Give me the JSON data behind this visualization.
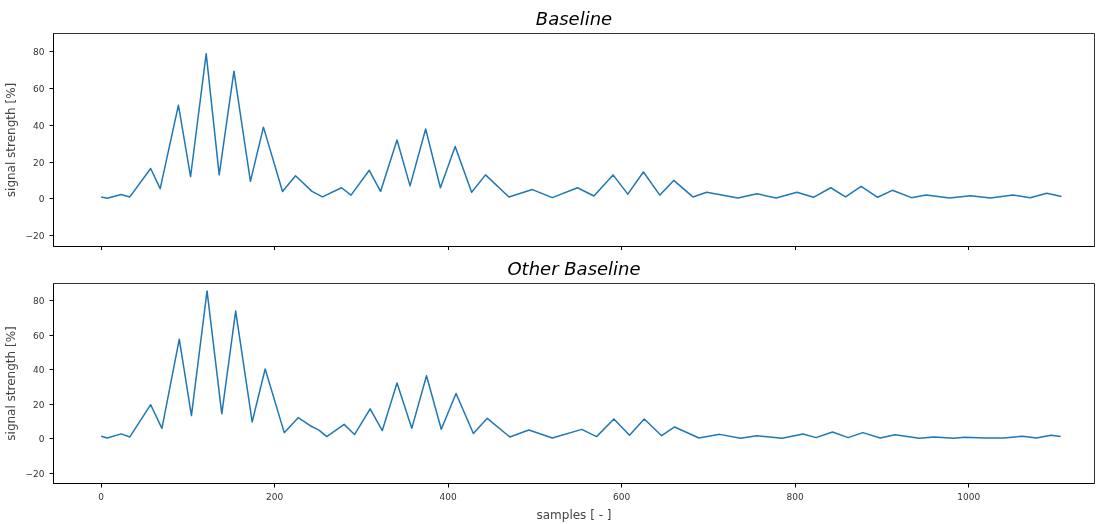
{
  "chart_data": [
    {
      "type": "line",
      "title": "Baseline",
      "ylabel": "signal strength [%]",
      "tick_labels": "y",
      "grid": false,
      "xlim": [
        -55,
        1145
      ],
      "xticks": [
        0,
        200,
        400,
        600,
        800,
        1000
      ],
      "ylim": [
        -26,
        90
      ],
      "yticks": [
        {
          "value": -20,
          "label": "−20"
        },
        0,
        20,
        40,
        60,
        80
      ],
      "series": [
        {
          "color": "#1f77b4",
          "x": [
            0,
            7,
            23,
            33,
            57,
            68,
            89,
            103,
            121,
            136,
            153,
            172,
            187,
            209,
            224,
            243,
            255,
            277,
            288,
            309,
            322,
            341,
            356,
            374,
            391,
            408,
            427,
            443,
            470,
            497,
            520,
            549,
            568,
            590,
            607,
            625,
            644,
            660,
            682,
            698,
            734,
            756,
            778,
            802,
            821,
            841,
            858,
            876,
            895,
            912,
            934,
            951,
            978,
            1002,
            1025,
            1051,
            1071,
            1090,
            1107
          ],
          "values": [
            1,
            0.3,
            2.3,
            1,
            16.5,
            5.5,
            51,
            12,
            79,
            13,
            69.5,
            9.5,
            39,
            4,
            12.5,
            4,
            1,
            6,
            2,
            15.5,
            4,
            32,
            7,
            38,
            6,
            28.5,
            3.5,
            13,
            1,
            5,
            0.6,
            6,
            1.5,
            13,
            2.5,
            14.6,
            2,
            10,
            1,
            3.5,
            0.4,
            2.7,
            0.4,
            3.5,
            0.8,
            6,
            1,
            6.7,
            0.8,
            4.6,
            0.6,
            2,
            0.4,
            1.7,
            0.4,
            2,
            0.6,
            3,
            1.2
          ]
        }
      ]
    },
    {
      "type": "line",
      "title": "Other Baseline",
      "xlabel": "samples [ - ]",
      "ylabel": "signal strength [%]",
      "grid": false,
      "xlim": [
        -55,
        1145
      ],
      "xticks": [
        0,
        200,
        400,
        600,
        800,
        1000
      ],
      "ylim": [
        -26,
        90
      ],
      "yticks": [
        {
          "value": -20,
          "label": "−20"
        },
        0,
        20,
        40,
        60,
        80
      ],
      "series": [
        {
          "color": "#1f77b4",
          "x": [
            0,
            7,
            23,
            33,
            57,
            70,
            90,
            104,
            122,
            139,
            155,
            174,
            189,
            211,
            227,
            241,
            251,
            260,
            280,
            292,
            310,
            324,
            341,
            358,
            375,
            392,
            409,
            429,
            445,
            471,
            493,
            520,
            554,
            571,
            591,
            609,
            626,
            646,
            661,
            689,
            713,
            737,
            756,
            785,
            809,
            824,
            843,
            861,
            878,
            898,
            915,
            943,
            960,
            983,
            995,
            1019,
            1040,
            1062,
            1078,
            1095,
            1106
          ],
          "values": [
            1.4,
            0.4,
            2.8,
            1,
            19.7,
            6,
            57.7,
            13.4,
            85.7,
            14.4,
            74,
            9.7,
            40.4,
            3.5,
            12.2,
            7.5,
            5,
            1.2,
            8.3,
            2.4,
            17.3,
            4.7,
            32.3,
            6,
            36.5,
            5.5,
            26.2,
            3,
            11.8,
            1,
            5,
            0.4,
            5.4,
            1.2,
            11.4,
            2,
            11.4,
            1.7,
            6.8,
            0.4,
            2.5,
            0.2,
            1.7,
            0.2,
            2.7,
            0.6,
            3.9,
            0.6,
            3.5,
            0.4,
            2.3,
            0.2,
            1,
            0.2,
            0.8,
            0.4,
            0.4,
            1.4,
            0.4,
            2,
            1.2
          ]
        }
      ]
    }
  ]
}
